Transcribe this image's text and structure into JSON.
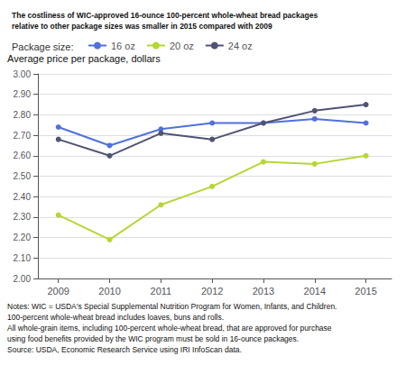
{
  "chart_data": {
    "type": "line",
    "title": "The costliness of WIC-approved 16-ounce 100-percent whole-wheat bread packages\nrelative to other package sizes was smaller in 2015 compared with 2009",
    "ylabel": "Average price per package, dollars",
    "x": [
      2009,
      2010,
      2011,
      2012,
      2013,
      2014,
      2015
    ],
    "xlim": [
      2008.6,
      2015.5
    ],
    "xticks": [
      2009,
      2010,
      2011,
      2012,
      2013,
      2014,
      2015
    ],
    "ylim": [
      2.0,
      3.0
    ],
    "yticks": [
      {
        "value": 2.0,
        "label": "2.00"
      },
      {
        "value": 2.1,
        "label": "2.10"
      },
      {
        "value": 2.2,
        "label": "2.20"
      },
      {
        "value": 2.3,
        "label": "2.30"
      },
      {
        "value": 2.4,
        "label": "2.40"
      },
      {
        "value": 2.5,
        "label": "2.50"
      },
      {
        "value": 2.6,
        "label": "2.60"
      },
      {
        "value": 2.7,
        "label": "2.70"
      },
      {
        "value": 2.8,
        "label": "2.80"
      },
      {
        "value": 2.9,
        "label": "2.90"
      },
      {
        "value": 3.0,
        "label": "3.00"
      }
    ],
    "grid": true,
    "legend": "top",
    "legend_title": "Package size:",
    "series": [
      {
        "name": "16 oz",
        "marker": "circle",
        "values": [
          2.74,
          2.65,
          2.73,
          2.76,
          2.76,
          2.78,
          2.76
        ]
      },
      {
        "name": "20 oz",
        "marker": "circle",
        "values": [
          2.31,
          2.19,
          2.36,
          2.45,
          2.57,
          2.56,
          2.6
        ]
      },
      {
        "name": "24 oz",
        "marker": "circle",
        "values": [
          2.68,
          2.6,
          2.71,
          2.68,
          2.76,
          2.82,
          2.85
        ]
      }
    ],
    "annotations": [
      "Notes: WIC = USDA's Special Supplemental Nutrition Program for Women, Infants, and Children.",
      "100-percent whole-wheat bread includes loaves, buns and rolls.",
      "All whole-grain items, including 100-percent whole-wheat bread, that are approved for purchase",
      "using food benefits provided by the WIC program must be sold in 16-ounce packages.",
      "Source: USDA, Economic Research Service using IRI InfoScan data."
    ]
  }
}
